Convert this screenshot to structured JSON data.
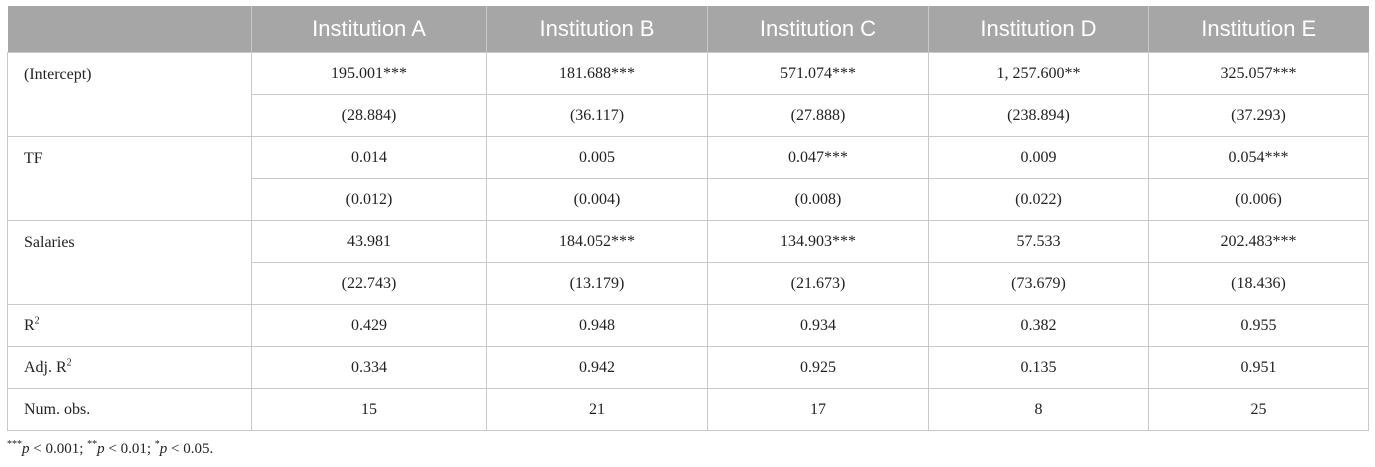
{
  "table": {
    "header": {
      "corner": "",
      "columns": [
        "Institution A",
        "Institution B",
        "Institution C",
        "Institution D",
        "Institution E"
      ]
    },
    "rows": [
      {
        "label": "(Intercept)",
        "estimates": [
          "195.001***",
          "181.688***",
          "571.074***",
          "1, 257.600**",
          "325.057***"
        ],
        "std_errors": [
          "(28.884)",
          "(36.117)",
          "(27.888)",
          "(238.894)",
          "(37.293)"
        ]
      },
      {
        "label": "TF",
        "estimates": [
          "0.014",
          "0.005",
          "0.047***",
          "0.009",
          "0.054***"
        ],
        "std_errors": [
          "(0.012)",
          "(0.004)",
          "(0.008)",
          "(0.022)",
          "(0.006)"
        ]
      },
      {
        "label": "Salaries",
        "estimates": [
          "43.981",
          "184.052***",
          "134.903***",
          "57.533",
          "202.483***"
        ],
        "std_errors": [
          "(22.743)",
          "(13.179)",
          "(21.673)",
          "(73.679)",
          "(18.436)"
        ]
      }
    ],
    "stats": [
      {
        "label": "R",
        "label_sup": "2",
        "values": [
          "0.429",
          "0.948",
          "0.934",
          "0.382",
          "0.955"
        ]
      },
      {
        "label": "Adj. R",
        "label_sup": "2",
        "values": [
          "0.334",
          "0.942",
          "0.925",
          "0.135",
          "0.951"
        ]
      },
      {
        "label": "Num. obs.",
        "label_sup": "",
        "values": [
          "15",
          "21",
          "17",
          "8",
          "25"
        ]
      }
    ]
  },
  "footnote": {
    "stars3": "***",
    "p": "p",
    "lt3": " < 0.001; ",
    "stars2": "**",
    "lt2": " < 0.01; ",
    "stars1": "*",
    "lt1": " < 0.05."
  }
}
